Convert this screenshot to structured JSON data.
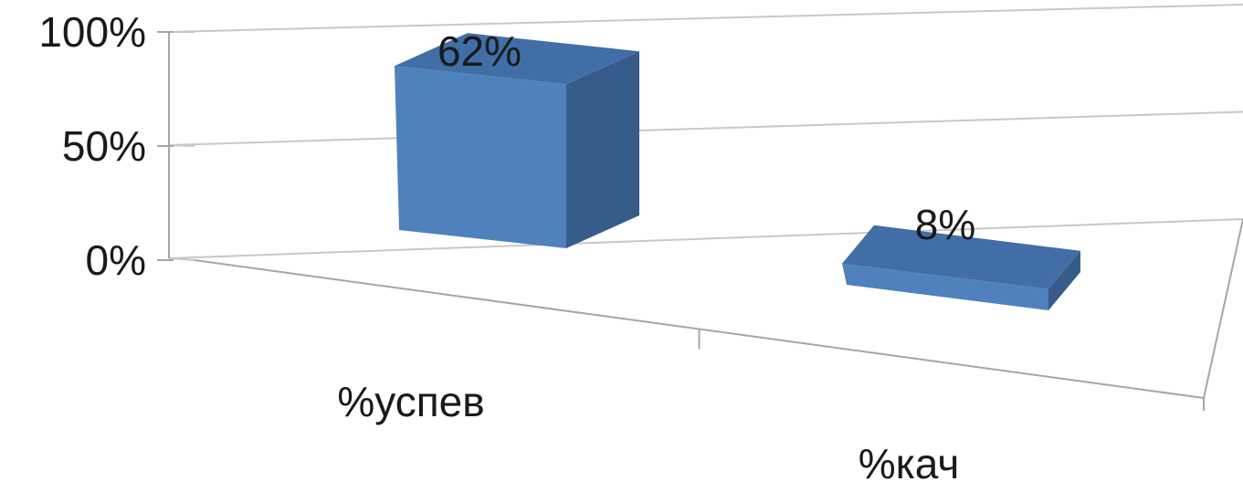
{
  "chart_data": {
    "type": "bar",
    "title": "",
    "xlabel": "",
    "ylabel": "",
    "categories": [
      "%успев",
      "%кач"
    ],
    "values": [
      62,
      8
    ],
    "data_labels": [
      "62%",
      "8%"
    ],
    "ylim": [
      0,
      100
    ],
    "yticks": [
      0,
      50,
      100
    ],
    "ytick_labels": [
      "0%",
      "50%",
      "100%"
    ],
    "grid": true,
    "legend": "none",
    "colors": {
      "bar_front": "#4f81bd",
      "bar_top": "#416ea6",
      "bar_side": "#365c8a"
    }
  }
}
